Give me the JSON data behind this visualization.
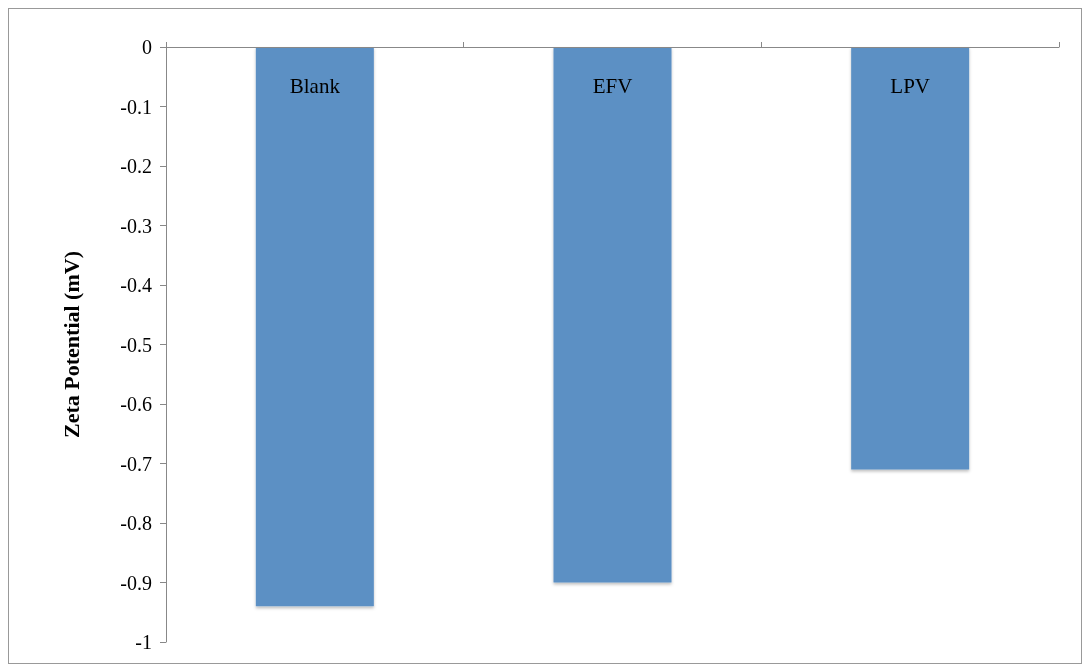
{
  "chart_data": {
    "type": "bar",
    "ylabel": "Zeta Potential (mV)",
    "categories": [
      "Blank",
      "EFV",
      "LPV"
    ],
    "values": [
      -0.94,
      -0.9,
      -0.71
    ],
    "color": "#5b90c4",
    "ylim": [
      -1,
      0
    ],
    "yticks": [
      -1,
      -0.9,
      -0.8,
      -0.7,
      -0.6,
      -0.5,
      -0.4,
      -0.3,
      -0.2,
      -0.1,
      0
    ],
    "grid": false
  }
}
